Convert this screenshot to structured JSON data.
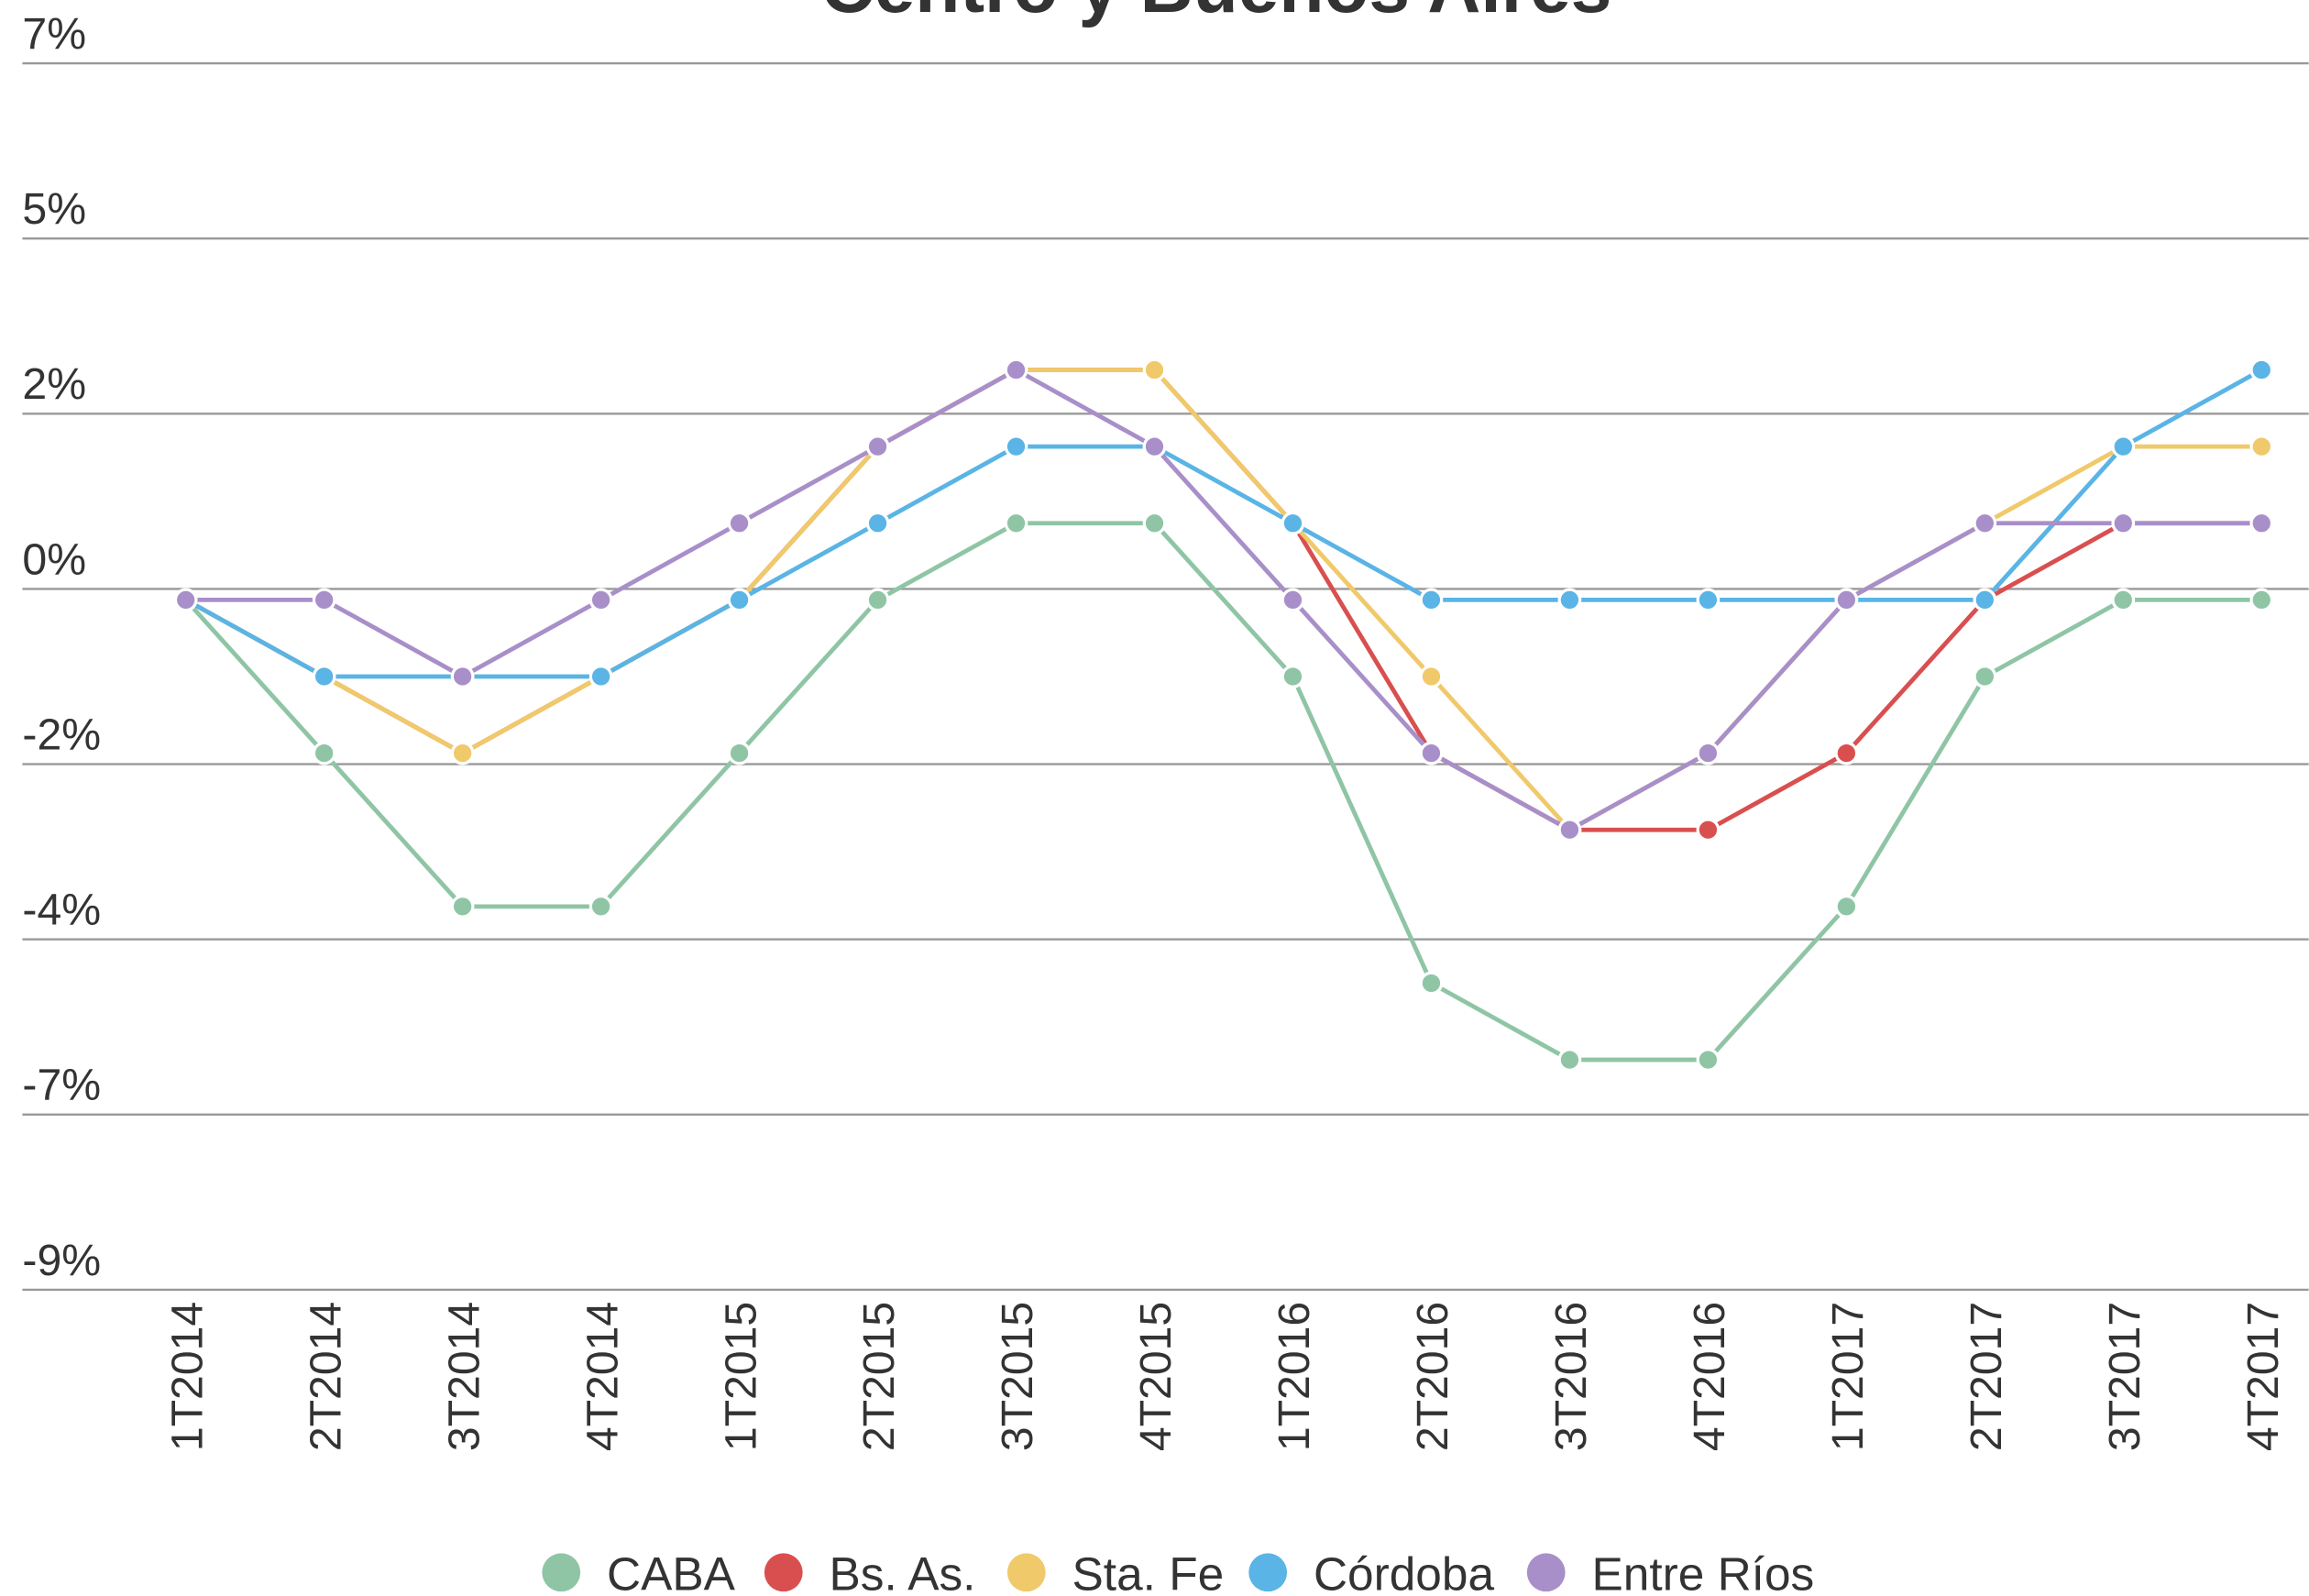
{
  "chart_data": {
    "type": "line",
    "title": "Centro y Buenos Aires",
    "categories": [
      "1T2014",
      "2T2014",
      "3T2014",
      "4T2014",
      "1T2015",
      "2T2015",
      "3T2015",
      "4T2015",
      "1T2016",
      "2T2016",
      "3T2016",
      "4T2016",
      "1T2017",
      "2T2017",
      "3T2017",
      "4T2017"
    ],
    "series": [
      {
        "name": "CABA",
        "color": "#8fc5a5",
        "values": [
          0,
          -2,
          -4,
          -4,
          -2,
          0,
          1,
          1,
          -1,
          -5,
          -6,
          -6,
          -4,
          -1,
          0,
          0
        ]
      },
      {
        "name": "Bs. As.",
        "color": "#d94f4f",
        "values": [
          0,
          -1,
          -2,
          -1,
          0,
          2,
          3,
          3,
          1,
          -2,
          -3,
          -3,
          -2,
          0,
          1,
          1
        ]
      },
      {
        "name": "Sta. Fe",
        "color": "#f0c96a",
        "values": [
          0,
          -1,
          -2,
          -1,
          0,
          2,
          3,
          3,
          1,
          -1,
          -3,
          -2,
          0,
          1,
          2,
          2
        ]
      },
      {
        "name": "Córdoba",
        "color": "#5ab4e5",
        "values": [
          0,
          -1,
          -1,
          -1,
          0,
          1,
          2,
          2,
          1,
          0,
          0,
          0,
          0,
          0,
          2,
          3
        ]
      },
      {
        "name": "Entre Ríos",
        "color": "#a98fc9",
        "values": [
          0,
          0,
          -1,
          0,
          1,
          2,
          3,
          2,
          0,
          -2,
          -3,
          -2,
          0,
          1,
          1,
          1
        ]
      }
    ],
    "ylim": [
      -9,
      7
    ],
    "yticks": [
      {
        "value": 7,
        "label": "7%"
      },
      {
        "value": 4.714,
        "label": "5%"
      },
      {
        "value": 2.429,
        "label": "2%"
      },
      {
        "value": 0.143,
        "label": "0%"
      },
      {
        "value": -2.143,
        "label": "-2%"
      },
      {
        "value": -4.429,
        "label": "-4%"
      },
      {
        "value": -6.714,
        "label": "-7%"
      },
      {
        "value": -9,
        "label": "-9%"
      }
    ],
    "grid": true,
    "legend": "bottom"
  }
}
